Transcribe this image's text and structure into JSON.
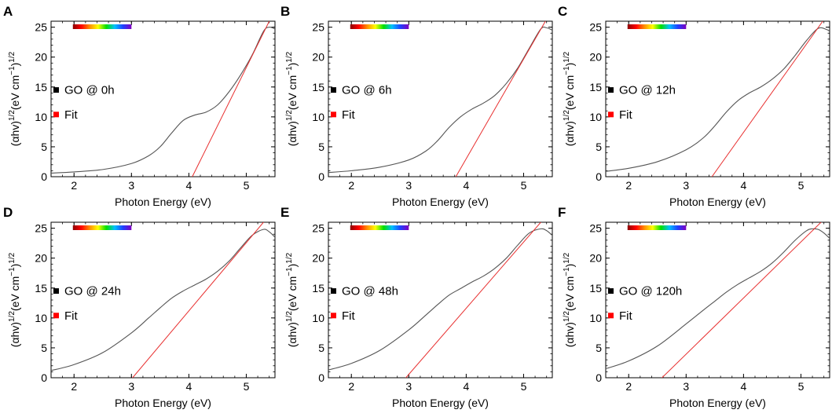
{
  "chart_data": [
    {
      "panel": "A",
      "type": "line",
      "xlabel": "Photon Energy (eV)",
      "ylabel_parts": [
        "(αhv)",
        "1/2",
        "(eV cm",
        "−1",
        ")",
        "1/2"
      ],
      "xlim": [
        1.6,
        5.5
      ],
      "ylim": [
        0,
        26
      ],
      "xticks": [
        2,
        3,
        4,
        5
      ],
      "yticks": [
        0,
        5,
        10,
        15,
        20,
        25
      ],
      "legend": [
        "GO @ 0h",
        "Fit"
      ],
      "series": [
        {
          "name": "GO @ 0h",
          "color": "#555555",
          "x": [
            1.6,
            2.0,
            2.5,
            3.0,
            3.3,
            3.5,
            3.7,
            3.9,
            4.1,
            4.3,
            4.5,
            4.7,
            4.9,
            5.1,
            5.3,
            5.4,
            5.5
          ],
          "y": [
            0.6,
            0.8,
            1.2,
            2.2,
            3.5,
            5.0,
            7.3,
            9.4,
            10.3,
            10.8,
            12.0,
            14.2,
            17.0,
            20.3,
            24.3,
            25.0,
            24.7
          ]
        },
        {
          "name": "Fit",
          "color": "#e83030",
          "x": [
            4.06,
            5.4
          ],
          "y": [
            0,
            26
          ]
        }
      ]
    },
    {
      "panel": "B",
      "type": "line",
      "xlabel": "Photon Energy (eV)",
      "ylabel_parts": [
        "(αhv)",
        "1/2",
        "(eV cm",
        "−1",
        ")",
        "1/2"
      ],
      "xlim": [
        1.6,
        5.5
      ],
      "ylim": [
        0,
        26
      ],
      "xticks": [
        2,
        3,
        4,
        5
      ],
      "yticks": [
        0,
        5,
        10,
        15,
        20,
        25
      ],
      "legend": [
        "GO @ 6h",
        "Fit"
      ],
      "series": [
        {
          "name": "GO @ 6h",
          "color": "#555555",
          "x": [
            1.6,
            2.0,
            2.5,
            3.0,
            3.3,
            3.5,
            3.7,
            3.9,
            4.1,
            4.3,
            4.5,
            4.7,
            4.9,
            5.1,
            5.3,
            5.4,
            5.5
          ],
          "y": [
            0.7,
            1.0,
            1.6,
            2.8,
            4.3,
            6.0,
            8.2,
            10.0,
            11.3,
            12.3,
            13.6,
            15.6,
            18.2,
            21.5,
            24.7,
            24.9,
            24.5
          ]
        },
        {
          "name": "Fit",
          "color": "#e83030",
          "x": [
            3.82,
            5.38
          ],
          "y": [
            0,
            26
          ]
        }
      ]
    },
    {
      "panel": "C",
      "type": "line",
      "xlabel": "Photon Energy (eV)",
      "ylabel_parts": [
        "(αhv)",
        "1/2",
        "(eV cm",
        "−1",
        ")",
        "1/2"
      ],
      "xlim": [
        1.6,
        5.5
      ],
      "ylim": [
        0,
        26
      ],
      "xticks": [
        2,
        3,
        4,
        5
      ],
      "yticks": [
        0,
        5,
        10,
        15,
        20,
        25
      ],
      "legend": [
        "GO @ 12h",
        "Fit"
      ],
      "series": [
        {
          "name": "GO @ 12h",
          "color": "#555555",
          "x": [
            1.6,
            2.0,
            2.5,
            3.0,
            3.3,
            3.5,
            3.7,
            3.9,
            4.1,
            4.3,
            4.5,
            4.7,
            4.9,
            5.1,
            5.3,
            5.45,
            5.5
          ],
          "y": [
            0.9,
            1.4,
            2.5,
            4.5,
            6.5,
            8.5,
            10.8,
            12.7,
            14.0,
            15.0,
            16.3,
            18.0,
            20.3,
            22.8,
            24.8,
            24.6,
            24.3
          ]
        },
        {
          "name": "Fit",
          "color": "#e83030",
          "x": [
            3.45,
            5.38
          ],
          "y": [
            0,
            26
          ]
        }
      ]
    },
    {
      "panel": "D",
      "type": "line",
      "xlabel": "Photon Energy (eV)",
      "ylabel_parts": [
        "(αhv)",
        "1/2",
        "(eV cm",
        "−1",
        ")",
        "1/2"
      ],
      "xlim": [
        1.6,
        5.5
      ],
      "ylim": [
        0,
        26
      ],
      "xticks": [
        2,
        3,
        4,
        5
      ],
      "yticks": [
        0,
        5,
        10,
        15,
        20,
        25
      ],
      "legend": [
        "GO @ 24h",
        "Fit"
      ],
      "series": [
        {
          "name": "GO @ 24h",
          "color": "#555555",
          "x": [
            1.6,
            2.0,
            2.5,
            3.0,
            3.3,
            3.5,
            3.7,
            3.9,
            4.1,
            4.3,
            4.5,
            4.7,
            4.9,
            5.1,
            5.3,
            5.4,
            5.5
          ],
          "y": [
            1.2,
            2.2,
            4.2,
            7.5,
            10.0,
            11.7,
            13.3,
            14.5,
            15.5,
            16.5,
            17.8,
            19.5,
            21.7,
            23.8,
            24.8,
            24.4,
            23.5
          ]
        },
        {
          "name": "Fit",
          "color": "#e83030",
          "x": [
            3.02,
            5.3
          ],
          "y": [
            0,
            26
          ]
        }
      ]
    },
    {
      "panel": "E",
      "type": "line",
      "xlabel": "Photon Energy (eV)",
      "ylabel_parts": [
        "(αhv)",
        "1/2",
        "(eV cm",
        "−1",
        ")",
        "1/2"
      ],
      "xlim": [
        1.6,
        5.5
      ],
      "ylim": [
        0,
        26
      ],
      "xticks": [
        2,
        3,
        4,
        5
      ],
      "yticks": [
        0,
        5,
        10,
        15,
        20,
        25
      ],
      "legend": [
        "GO @ 48h",
        "Fit"
      ],
      "series": [
        {
          "name": "GO @ 48h",
          "color": "#555555",
          "x": [
            1.6,
            2.0,
            2.5,
            3.0,
            3.3,
            3.5,
            3.7,
            3.9,
            4.1,
            4.3,
            4.5,
            4.7,
            4.9,
            5.1,
            5.3,
            5.4,
            5.5
          ],
          "y": [
            1.3,
            2.4,
            4.6,
            8.0,
            10.5,
            12.2,
            13.8,
            14.9,
            16.0,
            17.0,
            18.3,
            20.0,
            22.2,
            24.2,
            24.9,
            24.6,
            23.8
          ]
        },
        {
          "name": "Fit",
          "color": "#e83030",
          "x": [
            2.95,
            5.3
          ],
          "y": [
            0,
            26
          ]
        }
      ]
    },
    {
      "panel": "F",
      "type": "line",
      "xlabel": "Photon Energy (eV)",
      "ylabel_parts": [
        "(αhv)",
        "1/2",
        "(eV cm",
        "−1",
        ")",
        "1/2"
      ],
      "xlim": [
        1.6,
        5.5
      ],
      "ylim": [
        0,
        26
      ],
      "xticks": [
        2,
        3,
        4,
        5
      ],
      "yticks": [
        0,
        5,
        10,
        15,
        20,
        25
      ],
      "legend": [
        "GO @ 120h",
        "Fit"
      ],
      "series": [
        {
          "name": "GO @ 120h",
          "color": "#555555",
          "x": [
            1.6,
            2.0,
            2.5,
            3.0,
            3.3,
            3.5,
            3.7,
            3.9,
            4.1,
            4.3,
            4.5,
            4.7,
            4.9,
            5.1,
            5.2,
            5.3,
            5.4,
            5.5
          ],
          "y": [
            1.5,
            2.8,
            5.3,
            9.0,
            11.3,
            12.8,
            14.3,
            15.6,
            16.7,
            17.8,
            19.2,
            21.0,
            23.0,
            24.6,
            24.9,
            24.8,
            24.2,
            23.3
          ]
        },
        {
          "name": "Fit",
          "color": "#e83030",
          "x": [
            2.58,
            5.35
          ],
          "y": [
            0,
            26
          ]
        }
      ]
    }
  ],
  "colors": {
    "data_line": "#555555",
    "fit_line": "#e83030",
    "legend_data_marker": "#000000",
    "legend_fit_marker": "#ff0000",
    "spectrum_bar": [
      "#8b0000",
      "#ff0000",
      "#ff8c00",
      "#ffff00",
      "#00e000",
      "#00c0ff",
      "#2040ff",
      "#8000c0"
    ]
  }
}
